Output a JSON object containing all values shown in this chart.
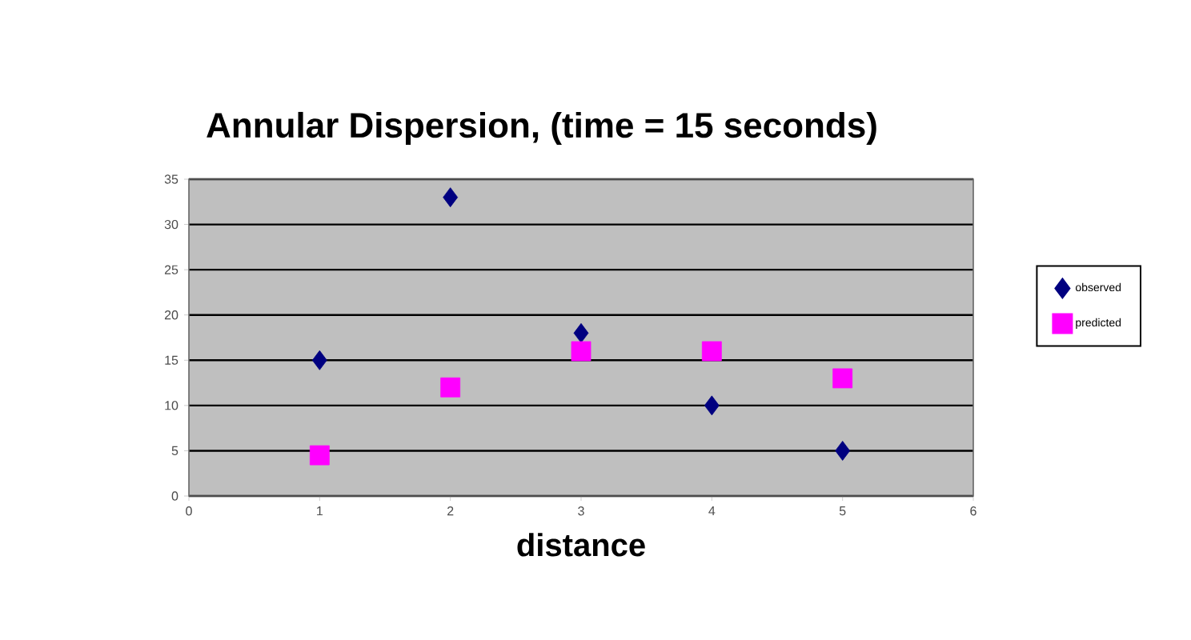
{
  "chart_data": {
    "type": "scatter",
    "title": "Annular Dispersion, (time = 15 seconds)",
    "xlabel": "distance",
    "x": [
      1,
      2,
      3,
      4,
      5
    ],
    "series": [
      {
        "name": "observed",
        "color": "#000080",
        "marker": "diamond",
        "values": [
          15,
          33,
          18,
          10,
          5
        ]
      },
      {
        "name": "predicted",
        "color": "#ff00ff",
        "marker": "square",
        "values": [
          4.5,
          12,
          16,
          16,
          13
        ]
      }
    ],
    "xlim": [
      0,
      6
    ],
    "xticks": [
      0,
      1,
      2,
      3,
      4,
      5,
      6
    ],
    "ylim": [
      0,
      35
    ],
    "yticks": [
      0,
      5,
      10,
      15,
      20,
      25,
      30,
      35
    ],
    "grid": "y",
    "legend": "right"
  }
}
